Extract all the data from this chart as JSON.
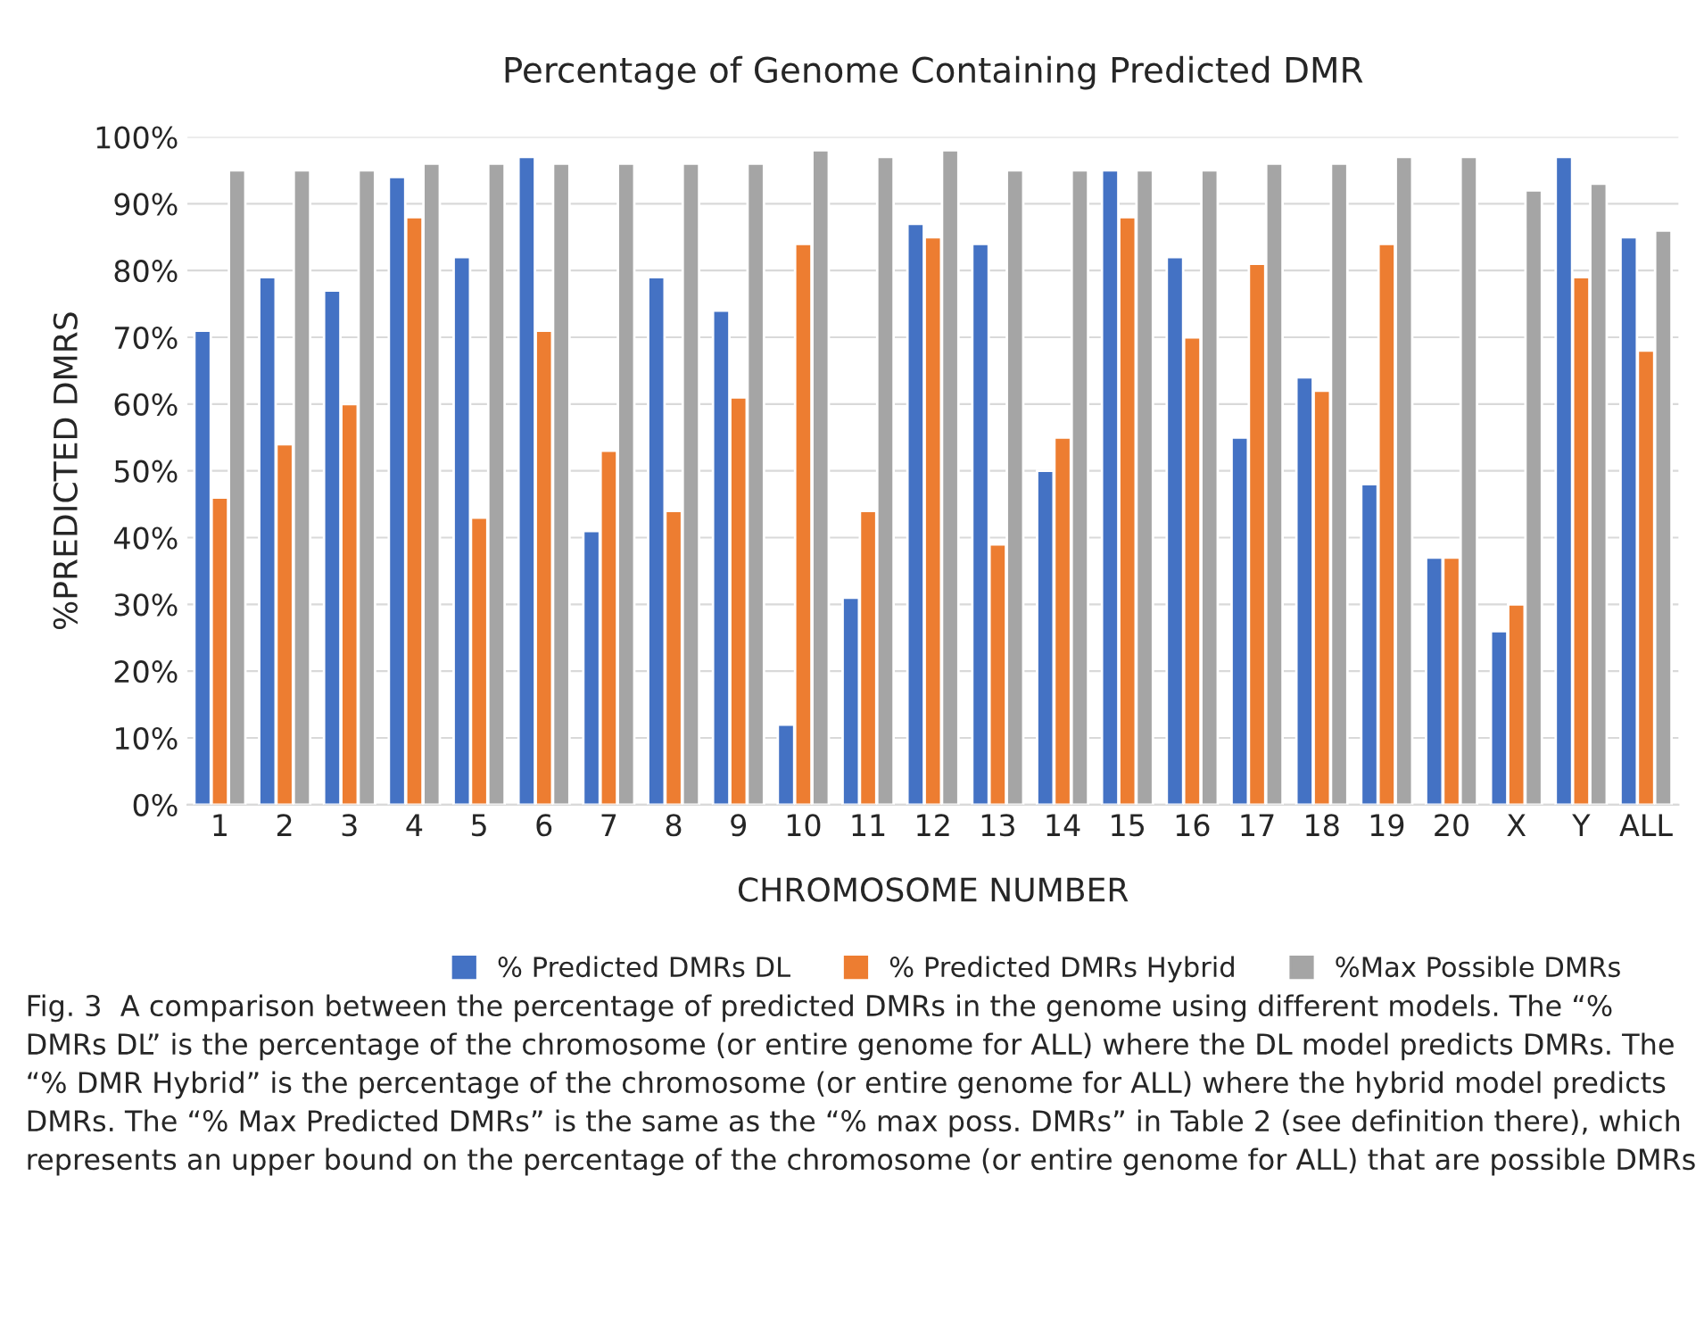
{
  "chart_data": {
    "type": "bar",
    "title": "Percentage of Genome Containing Predicted DMR",
    "xlabel": "CHROMOSOME NUMBER",
    "ylabel": "%PREDICTED DMRS",
    "categories": [
      "1",
      "2",
      "3",
      "4",
      "5",
      "6",
      "7",
      "8",
      "9",
      "10",
      "11",
      "12",
      "13",
      "14",
      "15",
      "16",
      "17",
      "18",
      "19",
      "20",
      "X",
      "Y",
      "ALL"
    ],
    "series": [
      {
        "name": "% Predicted DMRs DL",
        "color": "#4472c4",
        "values": [
          71,
          79,
          77,
          94,
          82,
          97,
          41,
          79,
          74,
          12,
          31,
          87,
          84,
          50,
          95,
          82,
          55,
          64,
          48,
          37,
          26,
          97,
          85
        ]
      },
      {
        "name": "% Predicted DMRs Hybrid",
        "color": "#ed7d31",
        "values": [
          46,
          54,
          60,
          88,
          43,
          71,
          53,
          44,
          61,
          84,
          44,
          85,
          39,
          55,
          88,
          70,
          81,
          62,
          84,
          37,
          30,
          79,
          68
        ]
      },
      {
        "name": "%Max Possible DMRs",
        "color": "#a5a5a5",
        "values": [
          95,
          95,
          95,
          96,
          96,
          96,
          96,
          96,
          96,
          98,
          97,
          98,
          95,
          95,
          95,
          95,
          96,
          96,
          97,
          97,
          92,
          93,
          86
        ]
      }
    ],
    "ylim": [
      0,
      100
    ],
    "yticks": [
      {
        "value": 0,
        "label": "0%"
      },
      {
        "value": 10,
        "label": "10%"
      },
      {
        "value": 20,
        "label": "20%"
      },
      {
        "value": 30,
        "label": "30%"
      },
      {
        "value": 40,
        "label": "40%"
      },
      {
        "value": 50,
        "label": "50%"
      },
      {
        "value": 60,
        "label": "60%"
      },
      {
        "value": 70,
        "label": "70%"
      },
      {
        "value": 80,
        "label": "80%"
      },
      {
        "value": 90,
        "label": "90%"
      },
      {
        "value": 100,
        "label": "100%"
      }
    ],
    "grid": "y",
    "legend": "bottom",
    "annotations": [
      "Fig. 3  A comparison between the percentage of predicted DMRs in the genome using different models. The “% DMRs DL” is the percentage of the chromosome (or entire genome for ALL) where the DL model predicts DMRs. The “% DMR Hybrid” is the percentage of the chromosome (or entire genome for ALL) where the hybrid model predicts DMRs. The “% Max Predicted DMRs” is the same as the “% max poss. DMRs” in Table 2 (see definition there), which represents an upper bound on the percentage of the chromosome (or entire genome for ALL) that are possible DMRs"
    ]
  }
}
